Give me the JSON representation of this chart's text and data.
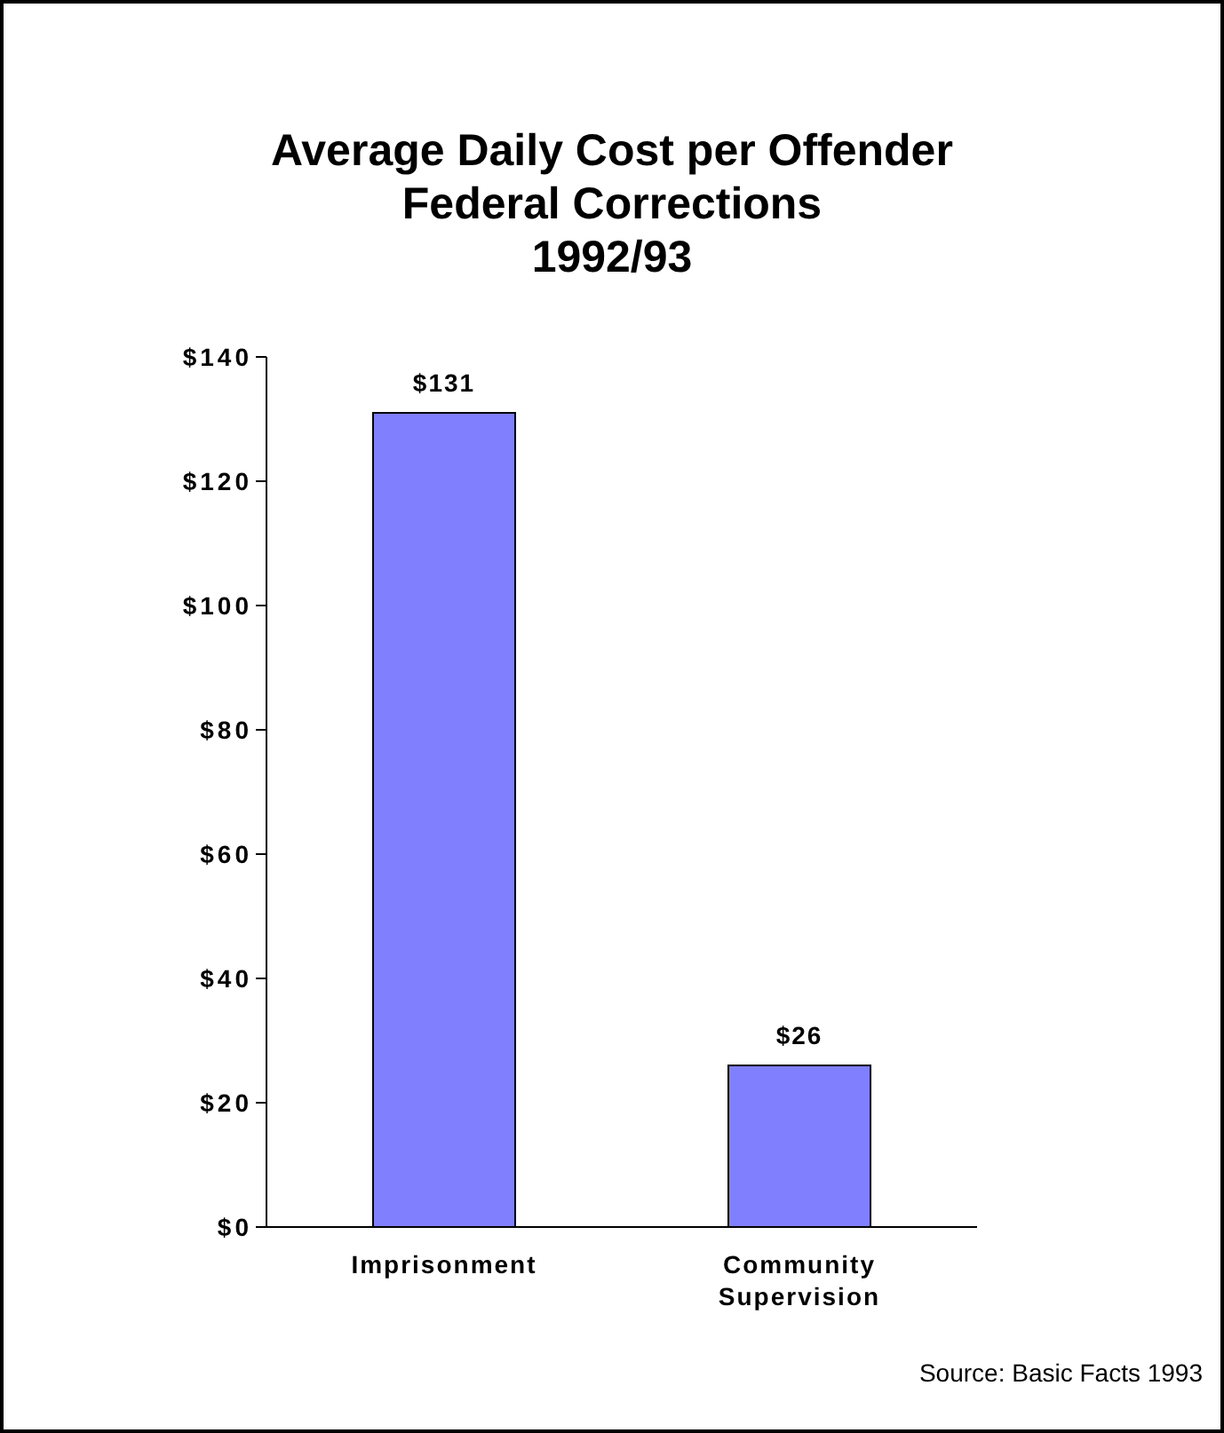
{
  "chart_data": {
    "type": "bar",
    "title": "Average Daily Cost per Offender\nFederal Corrections\n1992/93",
    "categories": [
      "Imprisonment",
      "Community Supervision"
    ],
    "values": [
      131,
      26
    ],
    "color": "#8080ff",
    "value_labels": [
      "$131",
      "$26"
    ],
    "ylim": [
      0,
      140
    ],
    "yticks": [
      {
        "value": 0,
        "label": "$0"
      },
      {
        "value": 20,
        "label": "$20"
      },
      {
        "value": 40,
        "label": "$40"
      },
      {
        "value": 60,
        "label": "$60"
      },
      {
        "value": 80,
        "label": "$80"
      },
      {
        "value": 100,
        "label": "$100"
      },
      {
        "value": 120,
        "label": "$120"
      },
      {
        "value": 140,
        "label": "$140"
      }
    ],
    "grid": false,
    "legend": false,
    "annotations": [
      "Source: Basic Facts 1993"
    ]
  }
}
